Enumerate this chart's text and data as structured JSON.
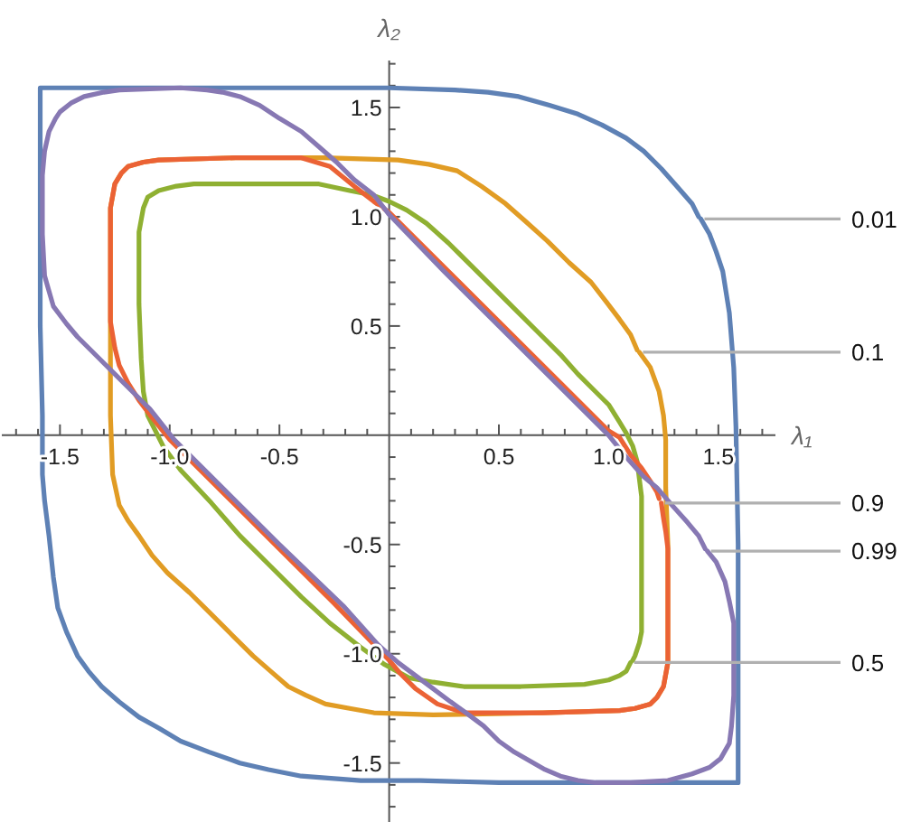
{
  "chart_data": {
    "type": "line",
    "xlabel": "λ₁",
    "ylabel": "λ₂",
    "xlim": [
      -1.765,
      1.76
    ],
    "ylim": [
      -1.77,
      1.715
    ],
    "xticks": [
      {
        "value": -1.7,
        "label": null
      },
      {
        "value": -1.6,
        "label": null
      },
      {
        "value": -1.5,
        "label": "-1.5"
      },
      {
        "value": -1.4,
        "label": null
      },
      {
        "value": -1.3,
        "label": null
      },
      {
        "value": -1.2,
        "label": null
      },
      {
        "value": -1.1,
        "label": null
      },
      {
        "value": -1.0,
        "label": "-1.0"
      },
      {
        "value": -0.9,
        "label": null
      },
      {
        "value": -0.8,
        "label": null
      },
      {
        "value": -0.7,
        "label": null
      },
      {
        "value": -0.6,
        "label": null
      },
      {
        "value": -0.5,
        "label": "-0.5"
      },
      {
        "value": -0.4,
        "label": null
      },
      {
        "value": -0.3,
        "label": null
      },
      {
        "value": -0.2,
        "label": null
      },
      {
        "value": -0.1,
        "label": null
      },
      {
        "value": 0.1,
        "label": null
      },
      {
        "value": 0.2,
        "label": null
      },
      {
        "value": 0.3,
        "label": null
      },
      {
        "value": 0.4,
        "label": null
      },
      {
        "value": 0.5,
        "label": "0.5"
      },
      {
        "value": 0.6,
        "label": null
      },
      {
        "value": 0.7,
        "label": null
      },
      {
        "value": 0.8,
        "label": null
      },
      {
        "value": 0.9,
        "label": null
      },
      {
        "value": 1.0,
        "label": "1.0"
      },
      {
        "value": 1.1,
        "label": null
      },
      {
        "value": 1.2,
        "label": null
      },
      {
        "value": 1.3,
        "label": null
      },
      {
        "value": 1.4,
        "label": null
      },
      {
        "value": 1.5,
        "label": "1.5"
      },
      {
        "value": 1.6,
        "label": null
      },
      {
        "value": 1.7,
        "label": null
      }
    ],
    "yticks": [
      {
        "value": -1.7,
        "label": null
      },
      {
        "value": -1.6,
        "label": null
      },
      {
        "value": -1.5,
        "label": "-1.5"
      },
      {
        "value": -1.4,
        "label": null
      },
      {
        "value": -1.3,
        "label": null
      },
      {
        "value": -1.2,
        "label": null
      },
      {
        "value": -1.1,
        "label": null
      },
      {
        "value": -1.0,
        "label": "-1.0"
      },
      {
        "value": -0.9,
        "label": null
      },
      {
        "value": -0.8,
        "label": null
      },
      {
        "value": -0.7,
        "label": null
      },
      {
        "value": -0.6,
        "label": null
      },
      {
        "value": -0.5,
        "label": "-0.5"
      },
      {
        "value": -0.4,
        "label": null
      },
      {
        "value": -0.3,
        "label": null
      },
      {
        "value": -0.2,
        "label": null
      },
      {
        "value": -0.1,
        "label": null
      },
      {
        "value": 0.1,
        "label": null
      },
      {
        "value": 0.2,
        "label": null
      },
      {
        "value": 0.3,
        "label": null
      },
      {
        "value": 0.4,
        "label": null
      },
      {
        "value": 0.5,
        "label": "0.5"
      },
      {
        "value": 0.6,
        "label": null
      },
      {
        "value": 0.7,
        "label": null
      },
      {
        "value": 0.8,
        "label": null
      },
      {
        "value": 0.9,
        "label": null
      },
      {
        "value": 1.0,
        "label": "1.0"
      },
      {
        "value": 1.1,
        "label": null
      },
      {
        "value": 1.2,
        "label": null
      },
      {
        "value": 1.3,
        "label": null
      },
      {
        "value": 1.4,
        "label": null
      },
      {
        "value": 1.5,
        "label": "1.5"
      },
      {
        "value": 1.6,
        "label": null
      },
      {
        "value": 1.7,
        "label": null
      }
    ],
    "series": [
      {
        "name": "0.01",
        "color": "#5e81b5",
        "x": [
          1.42,
          1.46,
          1.49,
          1.52,
          1.55,
          1.57,
          1.58,
          1.59,
          1.59,
          1.59,
          1.0,
          0.5,
          0.14,
          -0.13,
          -0.4,
          -0.55,
          -0.68,
          -0.82,
          -0.95,
          -1.05,
          -1.14,
          -1.23,
          -1.31,
          -1.37,
          -1.42,
          -1.47,
          -1.51,
          -1.53,
          -1.55,
          -1.57,
          -1.58,
          -1.58,
          -1.59,
          -1.59,
          -1.59,
          -1.0,
          -0.5,
          0,
          0.3,
          0.45,
          0.59,
          0.73,
          0.86,
          0.97,
          1.08,
          1.16,
          1.24,
          1.31,
          1.38,
          1.41
        ],
        "values": [
          0.99,
          0.92,
          0.84,
          0.75,
          0.56,
          0.31,
          0.04,
          -0.5,
          -1.0,
          -1.59,
          -1.59,
          -1.59,
          -1.58,
          -1.58,
          -1.56,
          -1.53,
          -1.5,
          -1.45,
          -1.4,
          -1.34,
          -1.29,
          -1.22,
          -1.15,
          -1.08,
          -1.01,
          -0.9,
          -0.79,
          -0.65,
          -0.46,
          -0.3,
          -0.18,
          0.09,
          0.5,
          1.0,
          1.59,
          1.59,
          1.59,
          1.59,
          1.58,
          1.57,
          1.55,
          1.51,
          1.47,
          1.42,
          1.36,
          1.3,
          1.22,
          1.14,
          1.06,
          1.0
        ]
      },
      {
        "name": "0.1",
        "color": "#e19c24",
        "x": [
          1.14,
          1.19,
          1.23,
          1.25,
          1.26,
          1.26,
          1.27,
          1.27,
          1.27,
          1.25,
          1.22,
          1.19,
          1.12,
          1.05,
          0.7,
          0.2,
          -0.07,
          -0.18,
          -0.29,
          -0.38,
          -0.46,
          -0.54,
          -0.62,
          -0.72,
          -0.81,
          -0.91,
          -1.01,
          -1.08,
          -1.14,
          -1.19,
          -1.23,
          -1.26,
          -1.27,
          -1.27,
          -1.27,
          -1.25,
          -1.22,
          -1.19,
          -1.12,
          -1.05,
          -0.7,
          -0.3,
          0.04,
          0.18,
          0.31,
          0.42,
          0.53,
          0.62,
          0.72,
          0.82,
          0.92,
          0.99,
          1.05,
          1.1,
          1.13
        ],
        "values": [
          0.38,
          0.31,
          0.2,
          0.09,
          -0.02,
          -0.24,
          -0.5,
          -0.8,
          -1.04,
          -1.15,
          -1.2,
          -1.23,
          -1.25,
          -1.26,
          -1.27,
          -1.28,
          -1.27,
          -1.25,
          -1.23,
          -1.19,
          -1.15,
          -1.08,
          -1.01,
          -0.91,
          -0.82,
          -0.72,
          -0.63,
          -0.55,
          -0.46,
          -0.39,
          -0.32,
          -0.18,
          0.09,
          0.5,
          1.04,
          1.15,
          1.2,
          1.23,
          1.25,
          1.26,
          1.27,
          1.27,
          1.26,
          1.24,
          1.21,
          1.14,
          1.06,
          0.98,
          0.89,
          0.79,
          0.7,
          0.61,
          0.53,
          0.46,
          0.39
        ]
      },
      {
        "name": "0.5",
        "color": "#8fb032",
        "x": [
          1.1,
          1.08,
          1.05,
          1.0,
          0.89,
          0.6,
          0.34,
          0.2,
          0.09,
          -0.02,
          -0.13,
          -0.27,
          -0.4,
          -0.54,
          -0.68,
          -0.81,
          -0.95,
          -1.03,
          -1.1,
          -1.12,
          -1.13,
          -1.14,
          -1.14,
          -1.12,
          -1.1,
          -1.05,
          -0.97,
          -0.89,
          -0.6,
          -0.32,
          -0.18,
          -0.08,
          0,
          0.08,
          0.17,
          0.27,
          0.37,
          0.46,
          0.56,
          0.67,
          0.78,
          0.86,
          0.94,
          1.0,
          1.05,
          1.08,
          1.11,
          1.13,
          1.15,
          1.15,
          1.15,
          1.14,
          1.12,
          1.11
        ],
        "values": [
          -1.04,
          -1.08,
          -1.1,
          -1.12,
          -1.14,
          -1.15,
          -1.15,
          -1.13,
          -1.11,
          -1.05,
          -0.97,
          -0.86,
          -0.74,
          -0.6,
          -0.46,
          -0.31,
          -0.16,
          -0.05,
          0.09,
          0.2,
          0.35,
          0.6,
          0.93,
          1.04,
          1.09,
          1.12,
          1.14,
          1.15,
          1.15,
          1.15,
          1.12,
          1.1,
          1.07,
          1.03,
          0.97,
          0.88,
          0.78,
          0.69,
          0.59,
          0.48,
          0.37,
          0.28,
          0.2,
          0.14,
          0.06,
          0.01,
          -0.05,
          -0.12,
          -0.28,
          -0.6,
          -0.9,
          -0.95,
          -1.01,
          -1.03
        ]
      },
      {
        "name": "0.9",
        "color": "#eb6235",
        "x": [
          1.24,
          1.25,
          1.26,
          1.27,
          1.27,
          1.27,
          1.25,
          1.22,
          1.19,
          1.12,
          1.05,
          0.7,
          0.34,
          0.22,
          0.12,
          0.05,
          0,
          -0.25,
          -0.5,
          -0.75,
          -1.0,
          -1.08,
          -1.14,
          -1.19,
          -1.23,
          -1.25,
          -1.26,
          -1.27,
          -1.27,
          -1.27,
          -1.25,
          -1.22,
          -1.19,
          -1.12,
          -1.05,
          -0.7,
          -0.4,
          -0.27,
          -0.16,
          -0.07,
          0,
          0.25,
          0.5,
          0.75,
          1.0,
          1.05,
          1.1,
          1.15,
          1.19,
          1.22,
          1.23
        ],
        "values": [
          -0.31,
          -0.38,
          -0.44,
          -0.52,
          -0.8,
          -1.04,
          -1.15,
          -1.2,
          -1.23,
          -1.25,
          -1.26,
          -1.27,
          -1.27,
          -1.23,
          -1.16,
          -1.09,
          -1.03,
          -0.77,
          -0.52,
          -0.27,
          -0.02,
          0.08,
          0.16,
          0.24,
          0.32,
          0.4,
          0.46,
          0.52,
          0.8,
          1.04,
          1.15,
          1.2,
          1.23,
          1.25,
          1.26,
          1.27,
          1.27,
          1.23,
          1.14,
          1.07,
          1.02,
          0.77,
          0.52,
          0.27,
          0.02,
          -0.01,
          -0.09,
          -0.15,
          -0.21,
          -0.26,
          -0.29
        ]
      },
      {
        "name": "0.99",
        "color": "#8778b3",
        "x": [
          1.45,
          1.49,
          1.53,
          1.55,
          1.57,
          1.57,
          1.57,
          1.56,
          1.55,
          1.51,
          1.46,
          1.38,
          1.27,
          1.1,
          0.94,
          0.86,
          0.78,
          0.71,
          0.64,
          0.57,
          0.5,
          0.43,
          0.35,
          0.28,
          0.2,
          0.12,
          0.04,
          -0.05,
          -0.21,
          -0.5,
          -0.75,
          -0.98,
          -1.09,
          -1.17,
          -1.25,
          -1.33,
          -1.42,
          -1.47,
          -1.53,
          -1.55,
          -1.57,
          -1.58,
          -1.58,
          -1.57,
          -1.55,
          -1.52,
          -1.5,
          -1.45,
          -1.39,
          -1.3,
          -1.23,
          -0.95,
          -0.83,
          -0.76,
          -0.68,
          -0.59,
          -0.5,
          -0.4,
          -0.32,
          -0.24,
          -0.16,
          -0.07,
          0,
          0.25,
          0.5,
          0.75,
          1.0,
          1.08,
          1.16,
          1.22,
          1.28,
          1.36,
          1.41,
          1.44
        ],
        "values": [
          -0.53,
          -0.58,
          -0.67,
          -0.76,
          -0.86,
          -1.0,
          -1.19,
          -1.33,
          -1.41,
          -1.48,
          -1.52,
          -1.55,
          -1.58,
          -1.59,
          -1.59,
          -1.58,
          -1.56,
          -1.53,
          -1.49,
          -1.45,
          -1.4,
          -1.33,
          -1.27,
          -1.22,
          -1.16,
          -1.1,
          -1.04,
          -0.96,
          -0.78,
          -0.5,
          -0.25,
          -0.02,
          0.12,
          0.2,
          0.28,
          0.36,
          0.45,
          0.51,
          0.59,
          0.66,
          0.73,
          0.92,
          1.19,
          1.3,
          1.39,
          1.45,
          1.48,
          1.52,
          1.55,
          1.57,
          1.58,
          1.59,
          1.58,
          1.57,
          1.55,
          1.51,
          1.45,
          1.39,
          1.32,
          1.25,
          1.17,
          1.1,
          1.01,
          0.75,
          0.5,
          0.25,
          0,
          -0.1,
          -0.19,
          -0.24,
          -0.31,
          -0.4,
          -0.46,
          -0.52
        ]
      }
    ]
  }
}
